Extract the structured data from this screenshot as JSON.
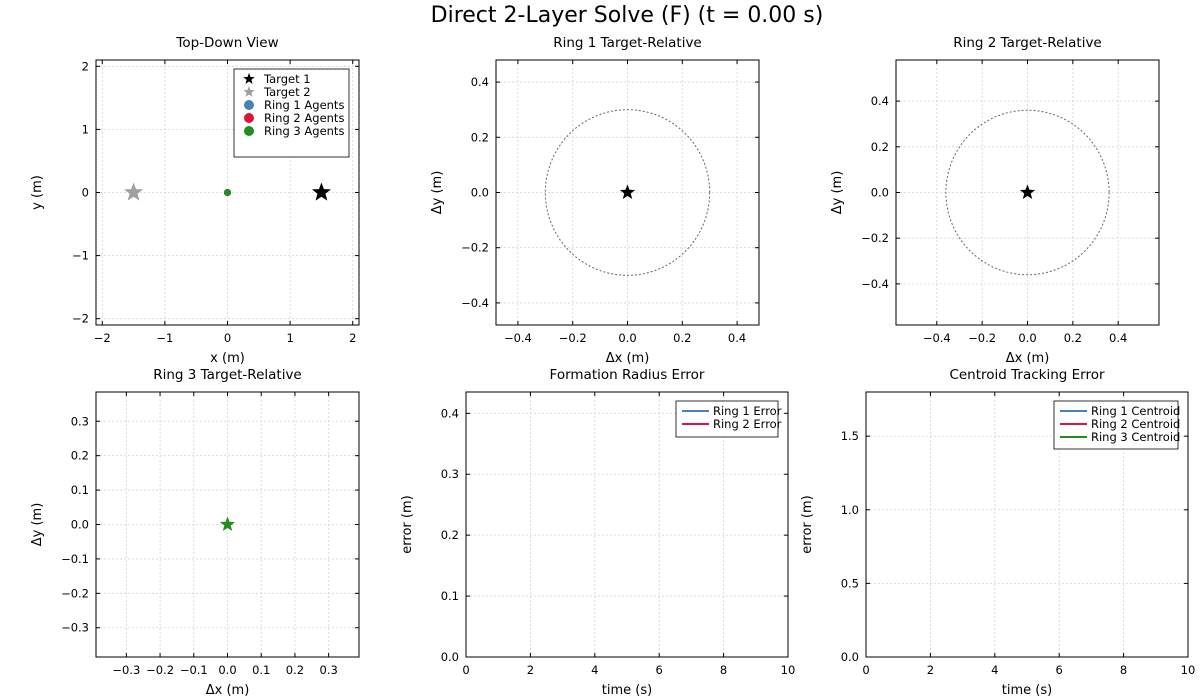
{
  "figure": {
    "title": "Direct 2-Layer Solve (F) (t = 0.00 s)"
  },
  "colors": {
    "target1": "#000000",
    "target2": "#a0a0a0",
    "ring1": "#4682b4",
    "ring2": "#dc143c",
    "ring3": "#228b22",
    "grid": "#d3d3d3",
    "circle": "#666666"
  },
  "chart_data": [
    {
      "type": "scatter",
      "title": "Top-Down View",
      "xlabel": "x (m)",
      "ylabel": "y (m)",
      "xlim": [
        -2.1,
        2.1
      ],
      "ylim": [
        -2.1,
        2.1
      ],
      "xticks": [
        -2,
        -1,
        0,
        1,
        2
      ],
      "yticks": [
        -2,
        -1,
        0,
        1,
        2
      ],
      "grid": true,
      "legend": "top-right",
      "series": [
        {
          "name": "Target 1",
          "marker": "star",
          "color": "target1",
          "points": [
            [
              1.5,
              0.0
            ]
          ]
        },
        {
          "name": "Target 2",
          "marker": "star",
          "color": "target2",
          "points": [
            [
              -1.5,
              0.0
            ]
          ]
        },
        {
          "name": "Ring 1 Agents",
          "marker": "circle",
          "color": "ring1",
          "points": [
            [
              0.0,
              0.0
            ]
          ]
        },
        {
          "name": "Ring 2 Agents",
          "marker": "circle",
          "color": "ring2",
          "points": [
            [
              0.0,
              0.0
            ]
          ]
        },
        {
          "name": "Ring 3 Agents",
          "marker": "circle",
          "color": "ring3",
          "points": [
            [
              0.0,
              0.0
            ]
          ]
        }
      ]
    },
    {
      "type": "scatter",
      "title": "Ring 1 Target-Relative",
      "xlabel": "Δx (m)",
      "ylabel": "Δy (m)",
      "xlim": [
        -0.48,
        0.48
      ],
      "ylim": [
        -0.48,
        0.48
      ],
      "xticks": [
        -0.4,
        -0.2,
        0.0,
        0.2,
        0.4
      ],
      "yticks": [
        -0.4,
        -0.2,
        0.0,
        0.2,
        0.4
      ],
      "grid": true,
      "reference_circle_radius": 0.3,
      "series": [
        {
          "marker": "star",
          "color": "target1",
          "points": [
            [
              0.0,
              0.0
            ]
          ]
        }
      ]
    },
    {
      "type": "scatter",
      "title": "Ring 2 Target-Relative",
      "xlabel": "Δx (m)",
      "ylabel": "Δy (m)",
      "xlim": [
        -0.58,
        0.58
      ],
      "ylim": [
        -0.58,
        0.58
      ],
      "xticks": [
        -0.4,
        -0.2,
        0.0,
        0.2,
        0.4
      ],
      "yticks": [
        -0.4,
        -0.2,
        0.0,
        0.2,
        0.4
      ],
      "grid": true,
      "reference_circle_radius": 0.36,
      "series": [
        {
          "marker": "star",
          "color": "target1",
          "points": [
            [
              0.0,
              0.0
            ]
          ]
        }
      ]
    },
    {
      "type": "scatter",
      "title": "Ring 3 Target-Relative",
      "xlabel": "Δx (m)",
      "ylabel": "Δy (m)",
      "xlim": [
        -0.39,
        0.39
      ],
      "ylim": [
        -0.385,
        0.385
      ],
      "xticks": [
        -0.3,
        -0.2,
        -0.1,
        0.0,
        0.1,
        0.2,
        0.3
      ],
      "yticks": [
        -0.3,
        -0.2,
        -0.1,
        0.0,
        0.1,
        0.2,
        0.3
      ],
      "grid": true,
      "series": [
        {
          "marker": "star",
          "color": "ring3",
          "points": [
            [
              0.0,
              0.0
            ]
          ]
        }
      ]
    },
    {
      "type": "line",
      "title": "Formation Radius Error",
      "xlabel": "time (s)",
      "ylabel": "error (m)",
      "xlim": [
        0,
        10
      ],
      "ylim": [
        0,
        0.435
      ],
      "xticks": [
        0,
        2,
        4,
        6,
        8,
        10
      ],
      "yticks": [
        0.0,
        0.1,
        0.2,
        0.3,
        0.4
      ],
      "grid": true,
      "legend": "top-right",
      "series": [
        {
          "name": "Ring 1 Error",
          "color": "ring1",
          "x": [],
          "y": []
        },
        {
          "name": "Ring 2 Error",
          "color": "ring2",
          "x": [],
          "y": []
        }
      ]
    },
    {
      "type": "line",
      "title": "Centroid Tracking Error",
      "xlabel": "time (s)",
      "ylabel": "error (m)",
      "xlim": [
        0,
        10
      ],
      "ylim": [
        0,
        1.8
      ],
      "xticks": [
        0,
        2,
        4,
        6,
        8,
        10
      ],
      "yticks": [
        0.0,
        0.5,
        1.0,
        1.5
      ],
      "grid": true,
      "legend": "top-right",
      "series": [
        {
          "name": "Ring 1 Centroid",
          "color": "ring1",
          "x": [],
          "y": []
        },
        {
          "name": "Ring 2 Centroid",
          "color": "ring2",
          "x": [],
          "y": []
        },
        {
          "name": "Ring 3 Centroid",
          "color": "ring3",
          "x": [],
          "y": []
        }
      ]
    }
  ]
}
